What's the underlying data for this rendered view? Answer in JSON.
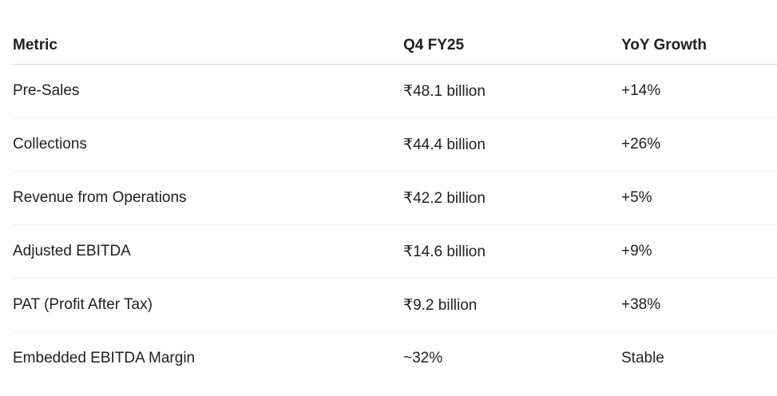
{
  "table": {
    "headers": [
      "Metric",
      "Q4 FY25",
      "YoY Growth"
    ],
    "rows": [
      [
        "Pre-Sales",
        "₹48.1 billion",
        "+14%"
      ],
      [
        "Collections",
        "₹44.4 billion",
        "+26%"
      ],
      [
        "Revenue from Operations",
        "₹42.2 billion",
        "+5%"
      ],
      [
        "Adjusted EBITDA",
        "₹14.6 billion",
        "+9%"
      ],
      [
        "PAT (Profit After Tax)",
        "₹9.2 billion",
        "+38%"
      ],
      [
        "Embedded EBITDA Margin",
        "~32%",
        "Stable"
      ]
    ]
  }
}
